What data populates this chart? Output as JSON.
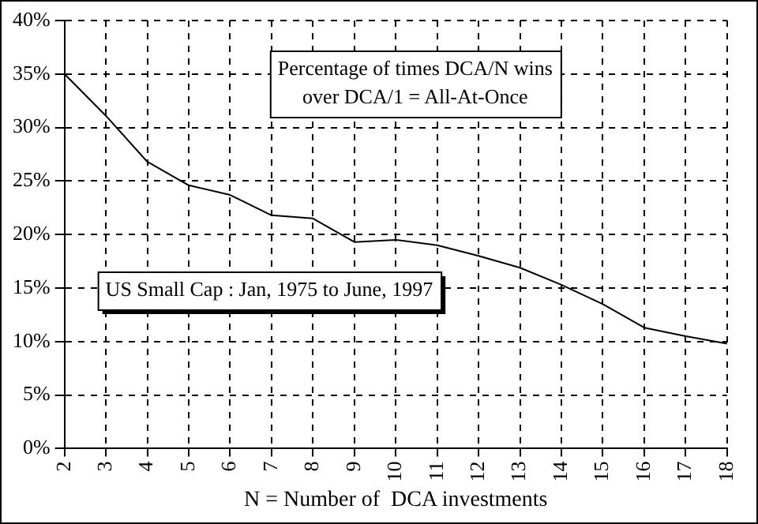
{
  "chart_data": {
    "type": "line",
    "xlabel": "N = Number of  DCA investments",
    "categories": [
      "2",
      "3",
      "4",
      "5",
      "6",
      "7",
      "8",
      "9",
      "10",
      "11",
      "12",
      "13",
      "14",
      "15",
      "16",
      "17",
      "18"
    ],
    "series": [
      {
        "color": "#000000",
        "values": [
          35,
          31.1,
          26.8,
          24.6,
          23.7,
          21.8,
          21.5,
          19.3,
          19.5,
          19.0,
          18.0,
          16.9,
          15.3,
          13.5,
          11.3,
          10.5,
          9.8
        ]
      }
    ],
    "ylim": [
      0,
      40
    ],
    "yticks": [
      {
        "value": 0,
        "label": "0%"
      },
      {
        "value": 5,
        "label": "5%"
      },
      {
        "value": 10,
        "label": "10%"
      },
      {
        "value": 15,
        "label": "15%"
      },
      {
        "value": 20,
        "label": "20%"
      },
      {
        "value": 25,
        "label": "25%"
      },
      {
        "value": 30,
        "label": "30%"
      },
      {
        "value": 35,
        "label": "35%"
      },
      {
        "value": 40,
        "label": "40%"
      }
    ],
    "grid": true,
    "marker": "none",
    "line_style": "solid",
    "legend": false,
    "annotations": [
      "Percentage of times DCA/N wins\nover DCA/1 = All-At-Once",
      "US Small Cap : Jan, 1975 to June, 1997"
    ]
  }
}
